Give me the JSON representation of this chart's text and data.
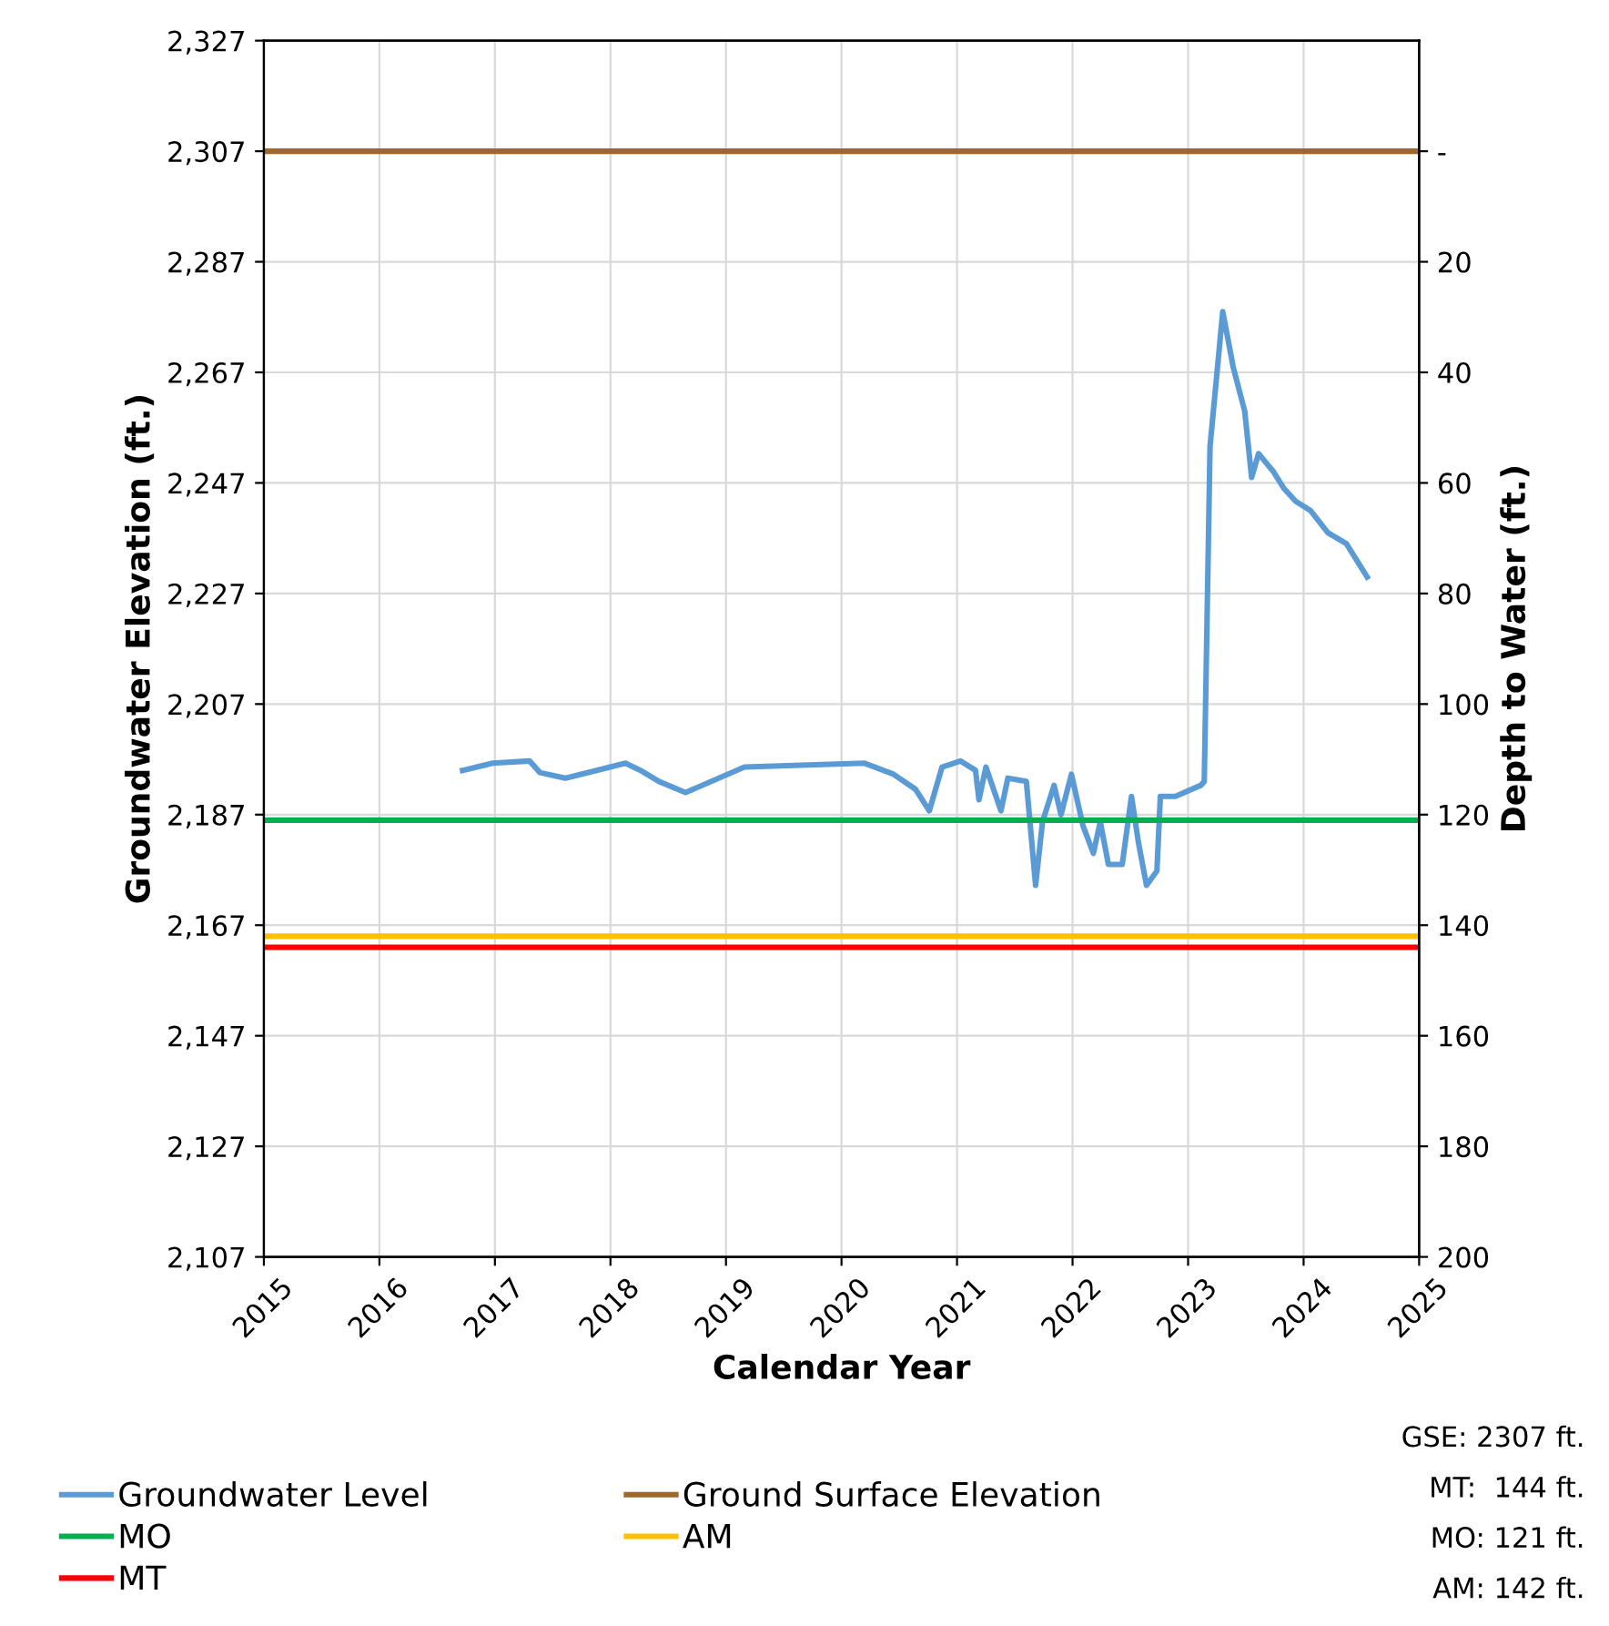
{
  "chart_data": {
    "type": "line",
    "xlabel": "Calendar Year",
    "ylabel": "Groundwater Elevation (ft.)",
    "y2label": "Depth to Water (ft.)",
    "xlim": [
      2015,
      2025
    ],
    "xticks": [
      2015,
      2016,
      2017,
      2018,
      2019,
      2020,
      2021,
      2022,
      2023,
      2024,
      2025
    ],
    "ylim": [
      2107,
      2327
    ],
    "yticks": [
      {
        "value": 2107,
        "label": "2,107"
      },
      {
        "value": 2127,
        "label": "2,127"
      },
      {
        "value": 2147,
        "label": "2,147"
      },
      {
        "value": 2167,
        "label": "2,167"
      },
      {
        "value": 2187,
        "label": "2,187"
      },
      {
        "value": 2207,
        "label": "2,207"
      },
      {
        "value": 2227,
        "label": "2,227"
      },
      {
        "value": 2247,
        "label": "2,247"
      },
      {
        "value": 2267,
        "label": "2,267"
      },
      {
        "value": 2287,
        "label": "2,287"
      },
      {
        "value": 2307,
        "label": "2,307"
      },
      {
        "value": 2327,
        "label": "2,327"
      }
    ],
    "y2lim": [
      200,
      -20
    ],
    "y2ticks": [
      {
        "value": 0,
        "label": "-"
      },
      20,
      40,
      60,
      80,
      100,
      120,
      140,
      160,
      180,
      200
    ],
    "grid": true,
    "legend": "bottom",
    "marker": "none",
    "line_style": "solid",
    "series": [
      {
        "name": "Groundwater Level",
        "color": "#5b9bd5",
        "x": [
          2016.72,
          2016.98,
          2017.3,
          2017.39,
          2017.61,
          2017.88,
          2018.13,
          2018.26,
          2018.42,
          2018.65,
          2019.16,
          2020.2,
          2020.45,
          2020.64,
          2020.76,
          2020.87,
          2021.03,
          2021.16,
          2021.19,
          2021.25,
          2021.38,
          2021.44,
          2021.6,
          2021.68,
          2021.74,
          2021.84,
          2021.9,
          2021.99,
          2022.09,
          2022.18,
          2022.24,
          2022.31,
          2022.43,
          2022.51,
          2022.57,
          2022.64,
          2022.73,
          2022.76,
          2022.89,
          2023.11,
          2023.14,
          2023.19,
          2023.3,
          2023.39,
          2023.49,
          2023.55,
          2023.61,
          2023.74,
          2023.83,
          2023.93,
          2024.06,
          2024.21,
          2024.37,
          2024.55
        ],
        "values": [
          2195,
          2196.3,
          2196.7,
          2194.6,
          2193.6,
          2195,
          2196.3,
          2195,
          2193,
          2191,
          2195.6,
          2196.3,
          2194.3,
          2191.6,
          2187.7,
          2195.6,
          2196.7,
          2195,
          2189.7,
          2195.6,
          2187.7,
          2193.6,
          2193,
          2174.2,
          2185.7,
          2192.3,
          2187,
          2194.3,
          2185,
          2180,
          2185.7,
          2178,
          2178,
          2190.3,
          2182,
          2174.2,
          2176.8,
          2190.3,
          2190.3,
          2192.3,
          2193,
          2253.6,
          2278,
          2268,
          2260,
          2248,
          2252.3,
          2249,
          2246,
          2243.7,
          2242,
          2238,
          2236,
          2230
        ]
      },
      {
        "name": "MO",
        "color": "#00b050",
        "x": [
          2015,
          2025
        ],
        "values": [
          2186,
          2186
        ]
      },
      {
        "name": "MT",
        "color": "#ff0000",
        "x": [
          2015,
          2025
        ],
        "values": [
          2163,
          2163
        ]
      },
      {
        "name": "Ground Surface Elevation",
        "color": "#a0672b",
        "x": [
          2015,
          2025
        ],
        "values": [
          2307,
          2307
        ]
      },
      {
        "name": "AM",
        "color": "#ffc000",
        "x": [
          2015,
          2025
        ],
        "values": [
          2165,
          2165
        ]
      }
    ],
    "annotations": [
      "GSE: 2307 ft.",
      "MT:  144 ft.",
      "MO: 121 ft.",
      "AM: 142 ft."
    ]
  }
}
